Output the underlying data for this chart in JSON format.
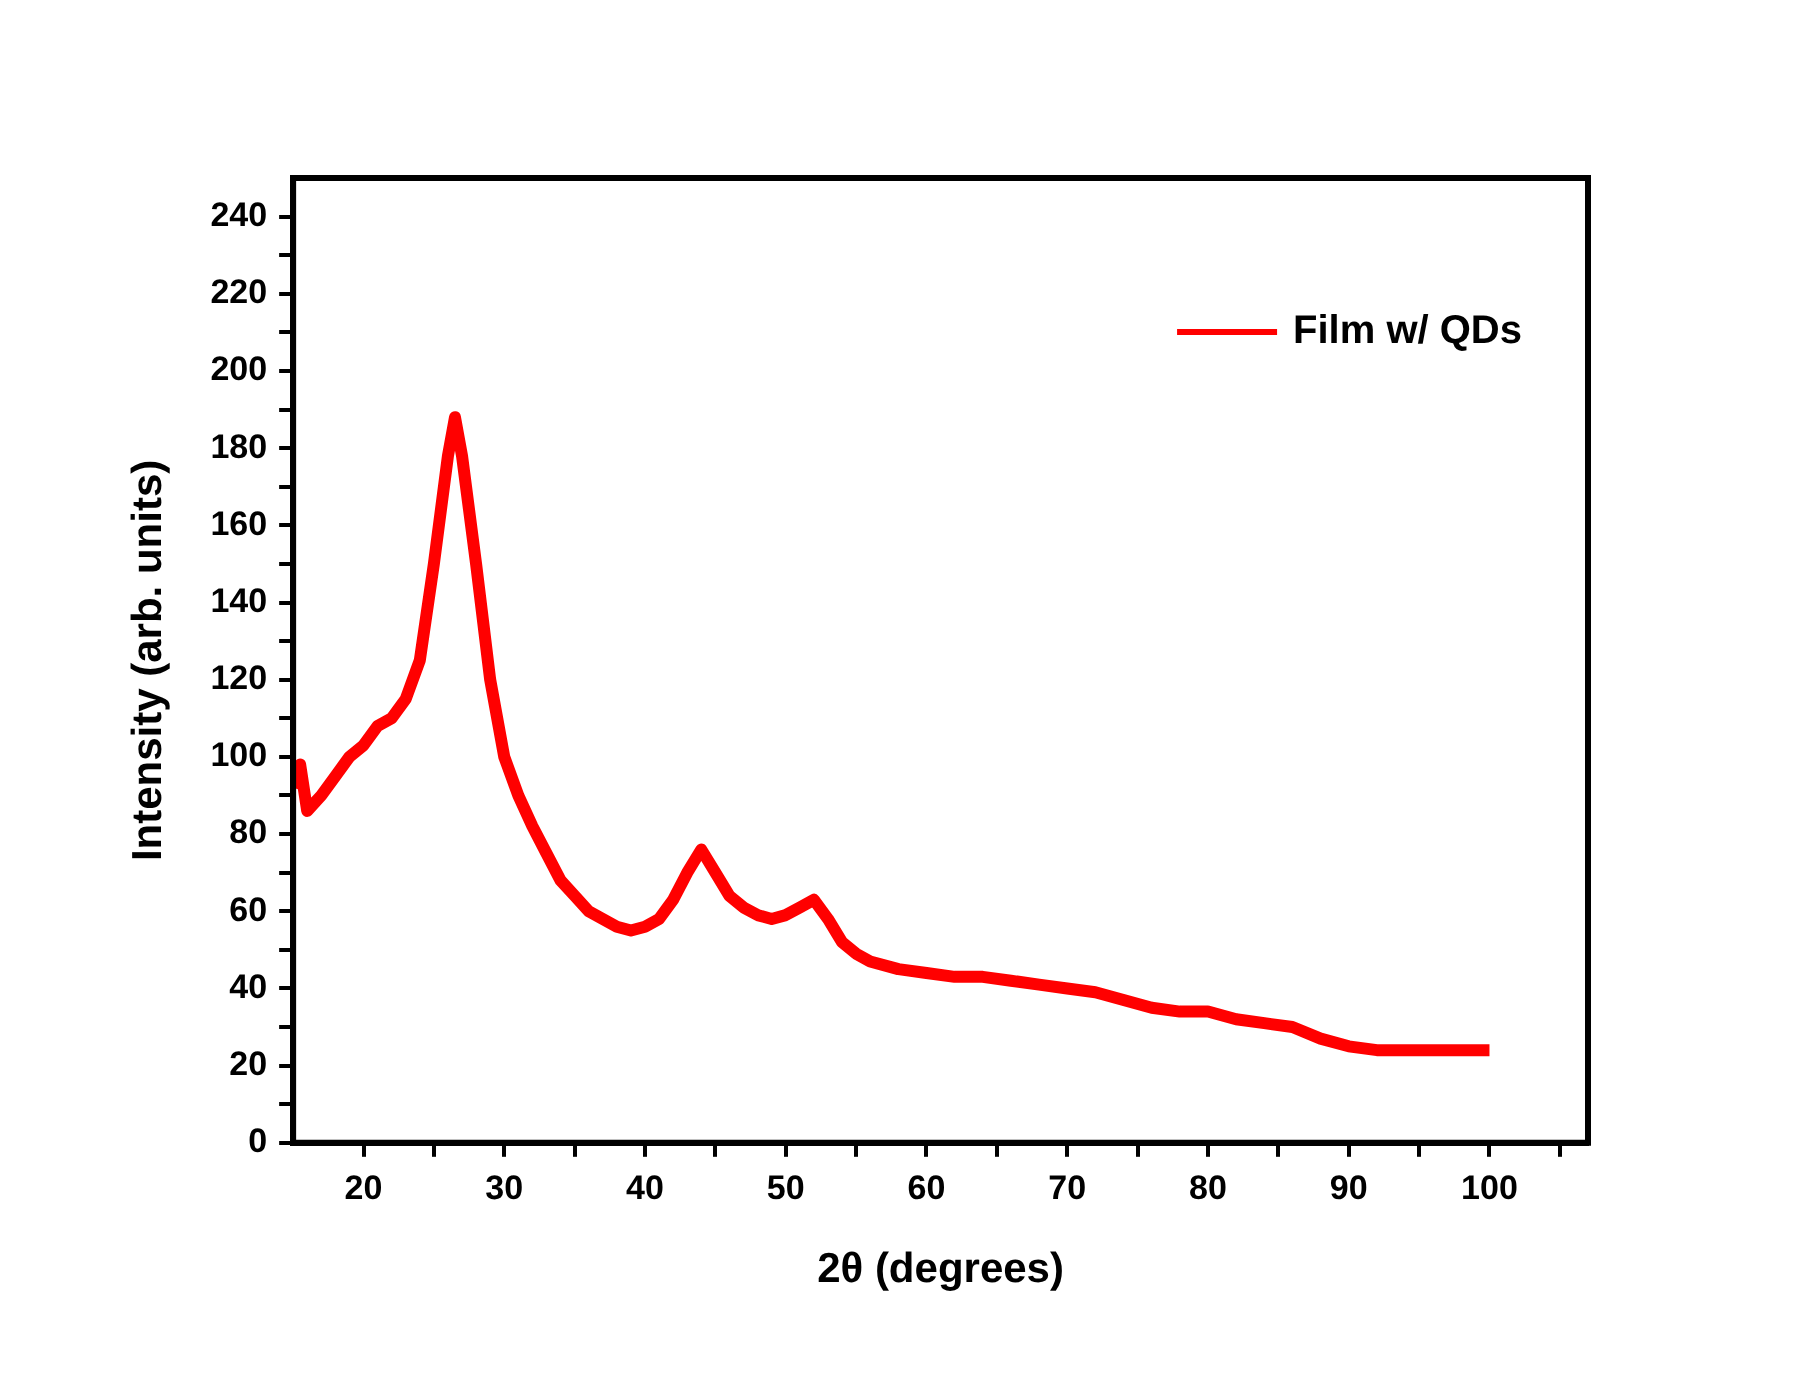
{
  "chart_data": {
    "type": "line",
    "xlabel": "2θ (degrees)",
    "ylabel": "Intensity (arb. units)",
    "xlim": [
      15,
      107
    ],
    "ylim": [
      0,
      250
    ],
    "xticks": [
      20,
      {
        "value": 25,
        "label": null
      },
      30,
      {
        "value": 35,
        "label": null
      },
      40,
      {
        "value": 45,
        "label": null
      },
      50,
      {
        "value": 55,
        "label": null
      },
      60,
      {
        "value": 65,
        "label": null
      },
      70,
      {
        "value": 75,
        "label": null
      },
      80,
      {
        "value": 85,
        "label": null
      },
      90,
      {
        "value": 95,
        "label": null
      },
      100,
      {
        "value": 105,
        "label": null
      }
    ],
    "yticks": [
      0,
      {
        "value": 10,
        "label": null
      },
      20,
      {
        "value": 30,
        "label": null
      },
      40,
      {
        "value": 50,
        "label": null
      },
      60,
      {
        "value": 70,
        "label": null
      },
      80,
      {
        "value": 90,
        "label": null
      },
      100,
      {
        "value": 110,
        "label": null
      },
      120,
      {
        "value": 130,
        "label": null
      },
      140,
      {
        "value": 150,
        "label": null
      },
      160,
      {
        "value": 170,
        "label": null
      },
      180,
      {
        "value": 190,
        "label": null
      },
      200,
      {
        "value": 210,
        "label": null
      },
      220,
      {
        "value": 230,
        "label": null
      },
      240
    ],
    "grid": false,
    "legend": "top right",
    "marker": "none",
    "line_style": "solid",
    "series": [
      {
        "name": "Film w/ QDs",
        "color": "#ff0000",
        "x": [
          15,
          15.5,
          16,
          17,
          18,
          19,
          20,
          21,
          22,
          23,
          24,
          25,
          26,
          26.5,
          27,
          28,
          29,
          30,
          31,
          32,
          33,
          34,
          35,
          36,
          37,
          38,
          39,
          40,
          41,
          42,
          43,
          44,
          45,
          46,
          47,
          48,
          49,
          50,
          51,
          52,
          53,
          54,
          55,
          56,
          58,
          60,
          62,
          64,
          66,
          68,
          70,
          72,
          74,
          76,
          78,
          80,
          82,
          84,
          86,
          88,
          90,
          92,
          94,
          96,
          98,
          100
        ],
        "values": [
          92,
          98,
          86,
          90,
          95,
          100,
          103,
          108,
          110,
          115,
          125,
          150,
          178,
          188,
          178,
          150,
          120,
          100,
          90,
          82,
          75,
          68,
          64,
          60,
          58,
          56,
          55,
          56,
          58,
          63,
          70,
          76,
          70,
          64,
          61,
          59,
          58,
          59,
          61,
          63,
          58,
          52,
          49,
          47,
          45,
          44,
          43,
          43,
          42,
          41,
          40,
          39,
          37,
          35,
          34,
          34,
          32,
          31,
          30,
          27,
          25,
          24,
          24,
          24,
          24,
          24
        ]
      }
    ]
  }
}
